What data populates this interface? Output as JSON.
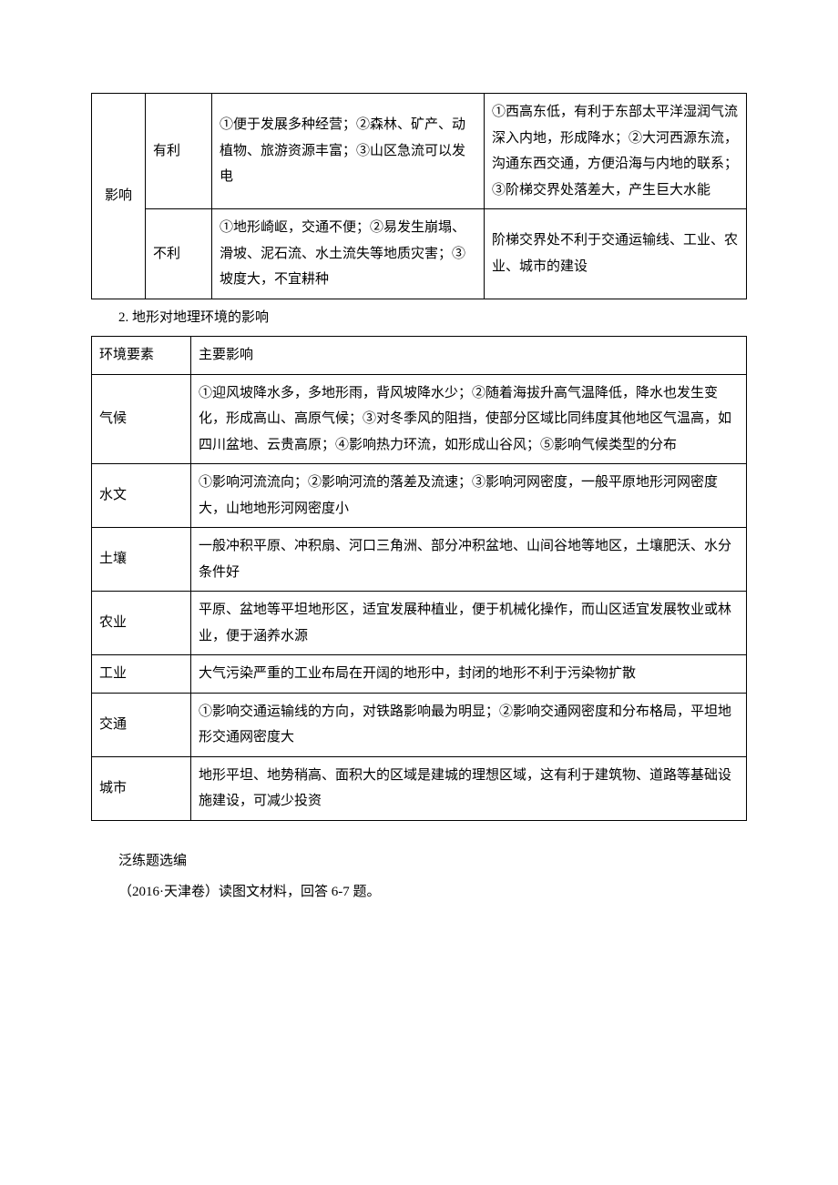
{
  "table1": {
    "row_group_label": "影响",
    "rows": [
      {
        "aspect": "有利",
        "col_a": "①便于发展多种经营；②森林、矿产、动植物、旅游资源丰富；③山区急流可以发电",
        "col_b": "①西高东低，有利于东部太平洋湿润气流深入内地，形成降水；②大河西源东流，沟通东西交通，方便沿海与内地的联系；③阶梯交界处落差大，产生巨大水能"
      },
      {
        "aspect": "不利",
        "col_a": "①地形崎岖，交通不便；②易发生崩塌、滑坡、泥石流、水土流失等地质灾害；③坡度大，不宜耕种",
        "col_b": "阶梯交界处不利于交通运输线、工业、农业、城市的建设"
      }
    ]
  },
  "section2_title": "2. 地形对地理环境的影响",
  "table2": {
    "header": {
      "c1": "环境要素",
      "c2": "主要影响"
    },
    "rows": [
      {
        "c1": "气候",
        "c2": "①迎风坡降水多，多地形雨，背风坡降水少；②随着海拔升高气温降低，降水也发生变化，形成高山、高原气候；③对冬季风的阻挡，使部分区域比同纬度其他地区气温高，如四川盆地、云贵高原；④影响热力环流，如形成山谷风；⑤影响气候类型的分布"
      },
      {
        "c1": "水文",
        "c2": "①影响河流流向；②影响河流的落差及流速；③影响河网密度，一般平原地形河网密度大，山地地形河网密度小"
      },
      {
        "c1": "土壤",
        "c2": "一般冲积平原、冲积扇、河口三角洲、部分冲积盆地、山间谷地等地区，土壤肥沃、水分条件好"
      },
      {
        "c1": "农业",
        "c2": "平原、盆地等平坦地形区，适宜发展种植业，便于机械化操作，而山区适宜发展牧业或林业，便于涵养水源"
      },
      {
        "c1": "工业",
        "c2": "大气污染严重的工业布局在开阔的地形中，封闭的地形不利于污染物扩散"
      },
      {
        "c1": "交通",
        "c2": "①影响交通运输线的方向，对铁路影响最为明显；②影响交通网密度和分布格局，平坦地形交通网密度大"
      },
      {
        "c1": "城市",
        "c2": "地形平坦、地势稍高、面积大的区域是建城的理想区域，这有利于建筑物、道路等基础设施建设，可减少投资"
      }
    ]
  },
  "footer": {
    "line1": "泛练题选编",
    "line2": "（2016·天津卷）读图文材料，回答 6-7 题。"
  }
}
